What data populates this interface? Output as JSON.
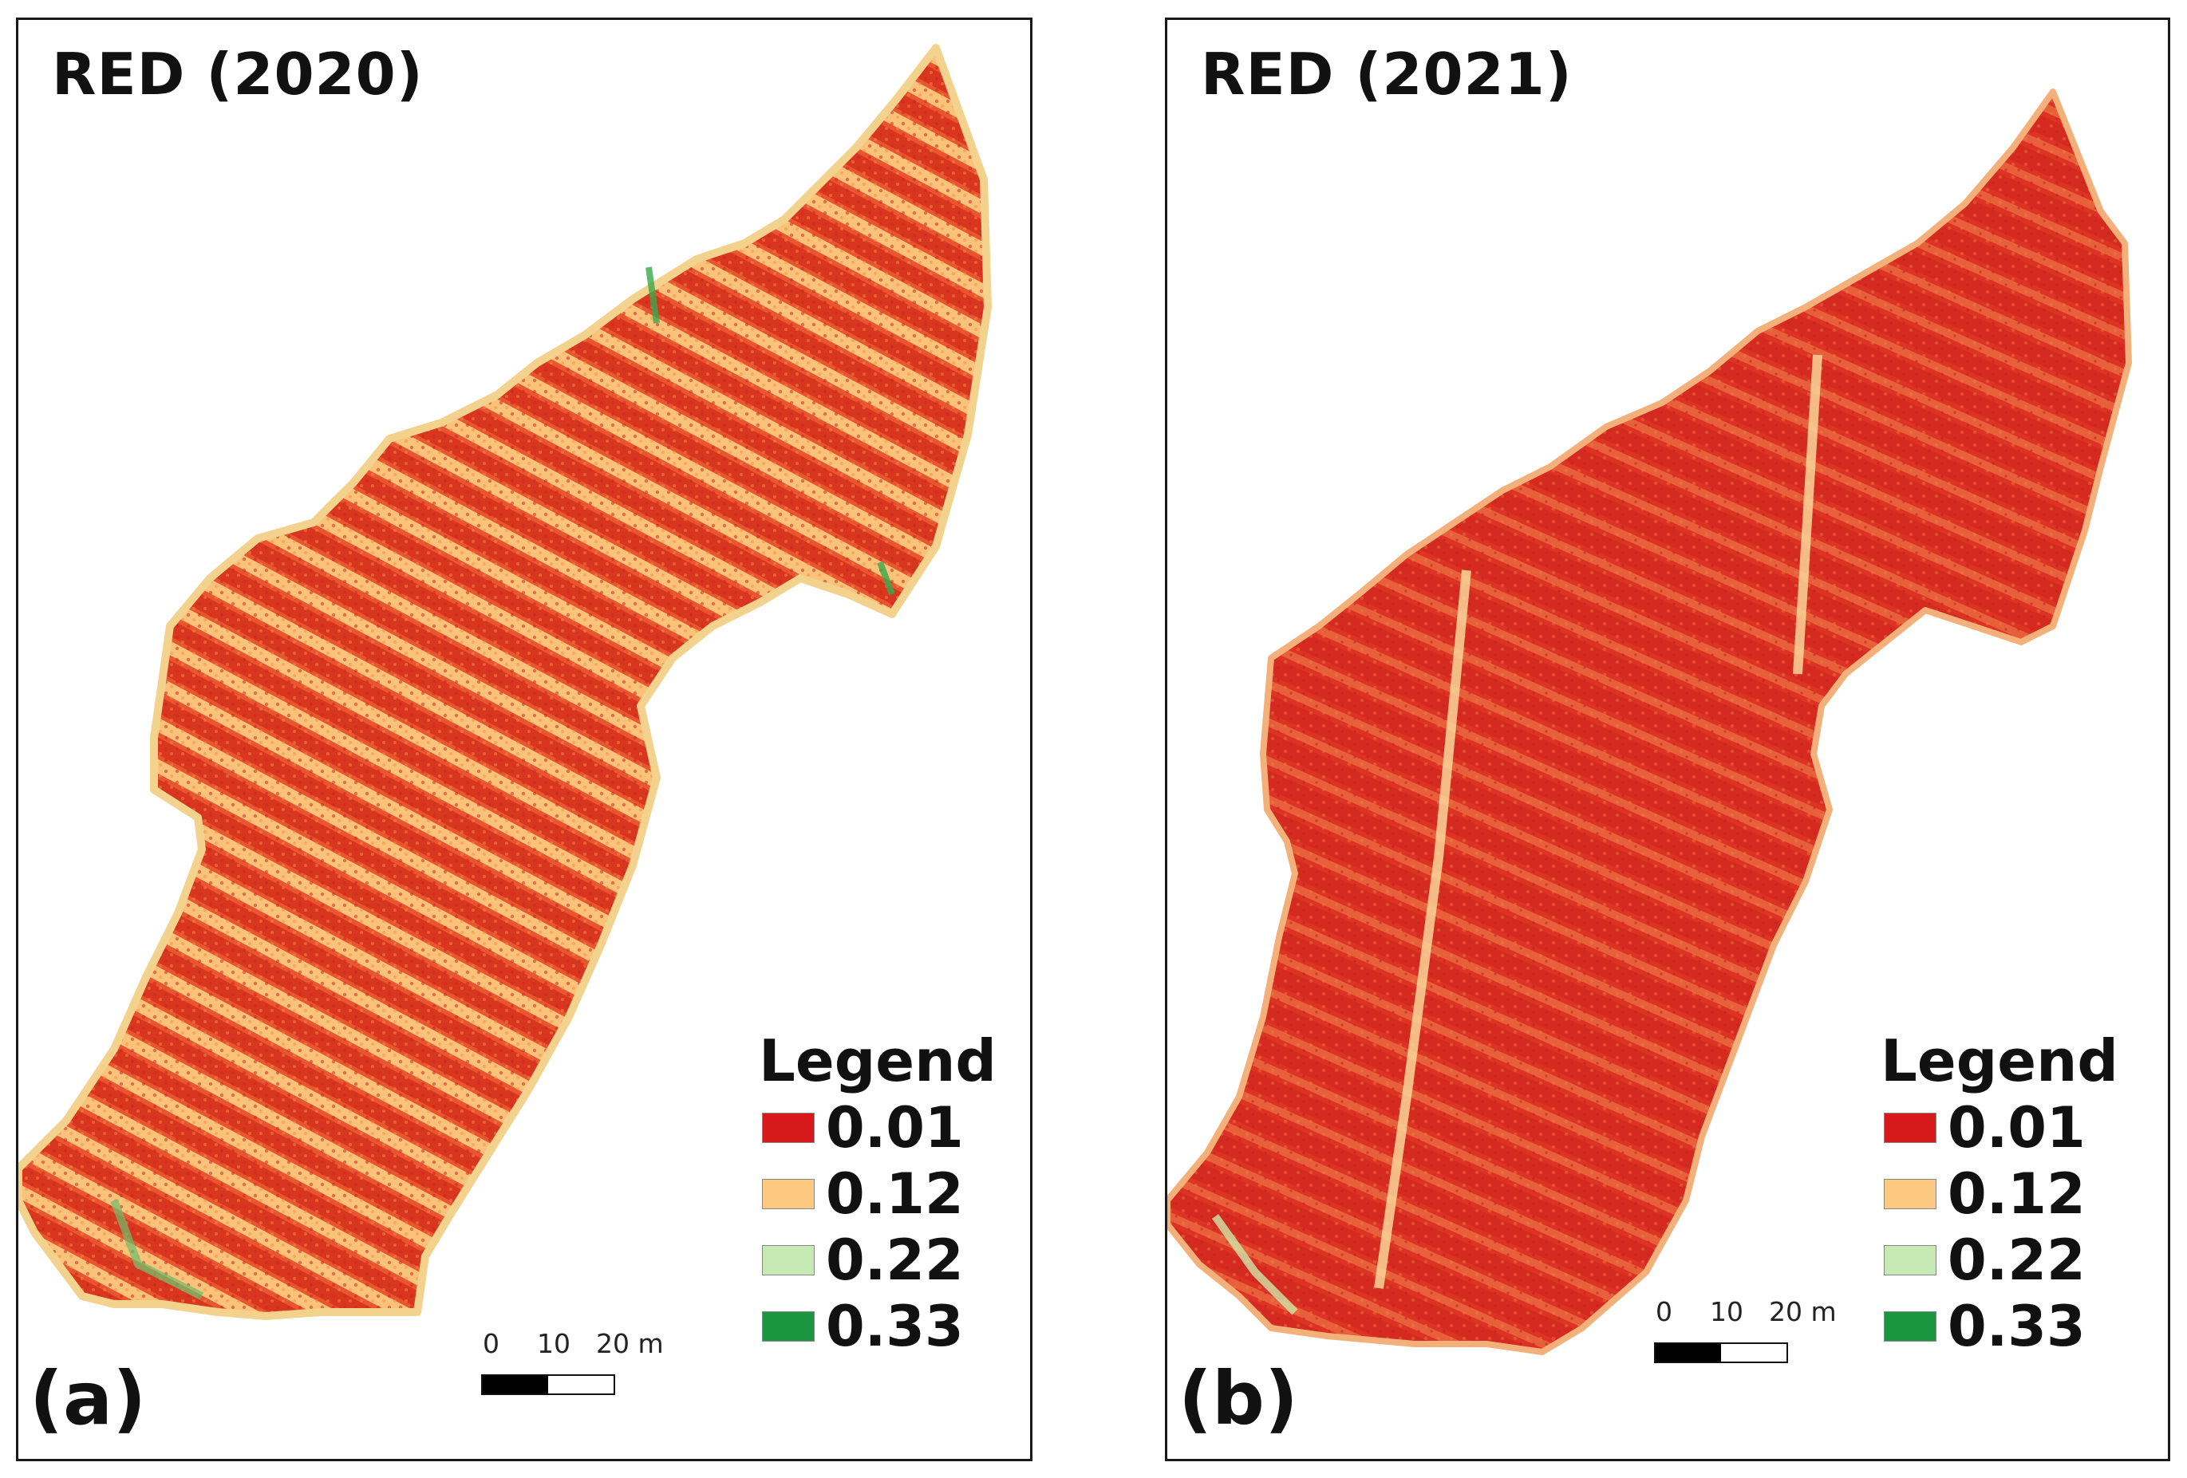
{
  "colors": {
    "class_0_01": "#d7191c",
    "class_0_12": "#fdc980",
    "class_0_22": "#c7e9b4",
    "class_0_33": "#1a9641"
  },
  "panels": [
    {
      "title": "RED (2020)",
      "letter": "(a)",
      "legend": {
        "title": "Legend",
        "items": [
          {
            "label": "0.01",
            "color": "#d7191c"
          },
          {
            "label": "0.12",
            "color": "#fdc980"
          },
          {
            "label": "0.22",
            "color": "#c7e9b4"
          },
          {
            "label": "0.33",
            "color": "#1a9641"
          }
        ]
      },
      "scalebar": {
        "ticks": [
          "0",
          "10",
          "20 m"
        ]
      }
    },
    {
      "title": "RED (2021)",
      "letter": "(b)",
      "legend": {
        "title": "Legend",
        "items": [
          {
            "label": "0.01",
            "color": "#d7191c"
          },
          {
            "label": "0.12",
            "color": "#fdc980"
          },
          {
            "label": "0.22",
            "color": "#c7e9b4"
          },
          {
            "label": "0.33",
            "color": "#1a9641"
          }
        ]
      },
      "scalebar": {
        "ticks": [
          "0",
          "10",
          "20 m"
        ]
      }
    }
  ]
}
